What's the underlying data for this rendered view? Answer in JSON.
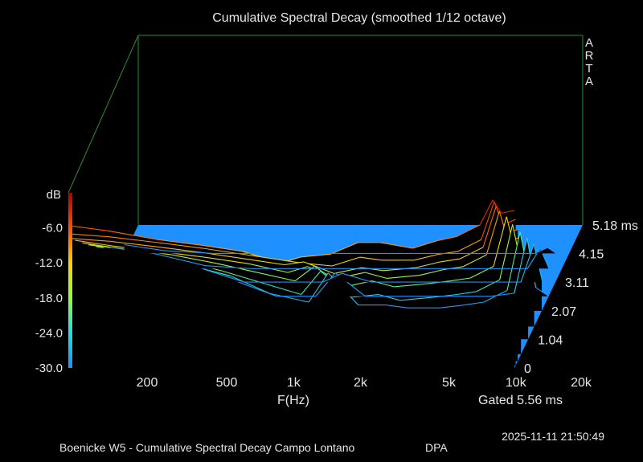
{
  "chart_data": {
    "type": "waterfall",
    "title": "Cumulative Spectral Decay (smoothed 1/12 octave)",
    "xlabel": "F(Hz)",
    "ylabel": "dB",
    "zlabel": "ms",
    "x_ticks": [
      "200",
      "500",
      "1k",
      "2k",
      "5k",
      "10k",
      "20k"
    ],
    "x_tick_values": [
      200,
      500,
      1000,
      2000,
      5000,
      10000,
      20000
    ],
    "y_ticks": [
      "-6.0",
      "-12.0",
      "-18.0",
      "-24.0",
      "-30.0"
    ],
    "y_tick_values": [
      -6,
      -12,
      -18,
      -24,
      -30
    ],
    "ylim": [
      -30,
      0
    ],
    "z_ticks": [
      "0",
      "1.04",
      "2.07",
      "3.11",
      "4.15",
      "5.18 ms"
    ],
    "z_tick_values": [
      0,
      1.04,
      2.07,
      3.11,
      4.15,
      5.18
    ],
    "gated_label": "Gated 5.56 ms",
    "brand_letters": [
      "A",
      "R",
      "T",
      "A"
    ],
    "colors": {
      "background": "#000000",
      "floor": "#1e90ff",
      "frame": "#2e8b2e",
      "text": "#e6e6e6"
    },
    "series": [
      {
        "time_ms": 0.0,
        "values": [
          [
            200,
            -5.6
          ],
          [
            300,
            -6.5
          ],
          [
            500,
            -8.0
          ],
          [
            800,
            -9.0
          ],
          [
            1200,
            -10.0
          ],
          [
            1800,
            -12.0
          ],
          [
            2200,
            -11.0
          ],
          [
            3000,
            -10.5
          ],
          [
            4000,
            -8.5
          ],
          [
            5000,
            -8.5
          ],
          [
            7000,
            -9.5
          ],
          [
            9000,
            -8.2
          ],
          [
            11000,
            -7.5
          ],
          [
            14000,
            -5.5
          ],
          [
            16000,
            -1.2
          ],
          [
            17500,
            -3.5
          ],
          [
            20000,
            -3.0
          ]
        ]
      },
      {
        "time_ms": 0.1,
        "values": [
          [
            200,
            -7.5
          ],
          [
            300,
            -8.0
          ],
          [
            500,
            -9.0
          ],
          [
            800,
            -10.0
          ],
          [
            1200,
            -11.0
          ],
          [
            1800,
            -12.0
          ],
          [
            2200,
            -12.5
          ],
          [
            3000,
            -13.0
          ],
          [
            4000,
            -11.5
          ],
          [
            5000,
            -12.0
          ],
          [
            7000,
            -12.0
          ],
          [
            9000,
            -11.0
          ],
          [
            11000,
            -10.5
          ],
          [
            14000,
            -8.5
          ],
          [
            16000,
            -2.0
          ],
          [
            17500,
            -6.0
          ],
          [
            20000,
            -5.0
          ]
        ]
      },
      {
        "time_ms": 0.25,
        "values": [
          [
            200,
            -9.0
          ],
          [
            300,
            -9.5
          ],
          [
            500,
            -10.5
          ],
          [
            800,
            -11.5
          ],
          [
            1200,
            -12.5
          ],
          [
            1800,
            -13.5
          ],
          [
            2200,
            -13.0
          ],
          [
            3000,
            -15.0
          ],
          [
            4000,
            -14.0
          ],
          [
            5000,
            -14.5
          ],
          [
            7000,
            -14.0
          ],
          [
            9000,
            -13.0
          ],
          [
            11000,
            -12.5
          ],
          [
            14000,
            -10.5
          ],
          [
            16000,
            -3.5
          ],
          [
            17500,
            -8.0
          ],
          [
            20000,
            -7.5
          ]
        ]
      },
      {
        "time_ms": 0.5,
        "values": [
          [
            200,
            -10.5
          ],
          [
            300,
            -11.5
          ],
          [
            500,
            -12.5
          ],
          [
            800,
            -13.5
          ],
          [
            1200,
            -14.5
          ],
          [
            1800,
            -16.0
          ],
          [
            2200,
            -15.0
          ],
          [
            3000,
            -17.0
          ],
          [
            4000,
            -16.0
          ],
          [
            5000,
            -17.0
          ],
          [
            7000,
            -16.5
          ],
          [
            9000,
            -15.5
          ],
          [
            11000,
            -15.0
          ],
          [
            14000,
            -13.0
          ],
          [
            16000,
            -5.5
          ],
          [
            17500,
            -10.5
          ],
          [
            20000,
            -10.0
          ]
        ]
      },
      {
        "time_ms": 1.04,
        "values": [
          [
            200,
            -13.5
          ],
          [
            300,
            -14.5
          ],
          [
            500,
            -15.5
          ],
          [
            800,
            -17.0
          ],
          [
            1200,
            -18.5
          ],
          [
            1800,
            -20.0
          ],
          [
            2200,
            -17.5
          ],
          [
            3000,
            -21.0
          ],
          [
            4000,
            -20.0
          ],
          [
            5000,
            -21.0
          ],
          [
            7000,
            -20.5
          ],
          [
            9000,
            -20.0
          ],
          [
            11000,
            -19.5
          ],
          [
            14000,
            -17.5
          ],
          [
            16000,
            -9.0
          ],
          [
            17500,
            -15.0
          ],
          [
            20000,
            -15.0
          ]
        ]
      },
      {
        "time_ms": 1.5,
        "values": [
          [
            200,
            -16.0
          ],
          [
            300,
            -17.0
          ],
          [
            500,
            -18.5
          ],
          [
            800,
            -20.5
          ],
          [
            1200,
            -22.5
          ],
          [
            1800,
            -24.5
          ],
          [
            2200,
            -20.5
          ],
          [
            3000,
            -25.0
          ],
          [
            4000,
            -24.5
          ],
          [
            5000,
            -25.5
          ],
          [
            7000,
            -25.0
          ],
          [
            9000,
            -24.5
          ],
          [
            11000,
            -24.0
          ],
          [
            14000,
            -22.0
          ],
          [
            16000,
            -12.5
          ],
          [
            17500,
            -19.5
          ],
          [
            20000,
            -20.0
          ]
        ]
      },
      {
        "time_ms": 2.07,
        "values": [
          [
            200,
            -19.0
          ],
          [
            300,
            -20.0
          ],
          [
            500,
            -22.0
          ],
          [
            800,
            -24.0
          ],
          [
            1200,
            -27.0
          ],
          [
            1800,
            -28.5
          ],
          [
            2200,
            -23.5
          ],
          [
            3000,
            -29.0
          ],
          [
            4000,
            -29.0
          ],
          [
            5000,
            -29.5
          ],
          [
            7000,
            -29.5
          ],
          [
            9000,
            -29.0
          ],
          [
            11000,
            -28.5
          ],
          [
            14000,
            -26.5
          ],
          [
            16000,
            -16.5
          ],
          [
            17500,
            -24.0
          ],
          [
            20000,
            -25.0
          ]
        ]
      },
      {
        "time_ms": 2.6,
        "values": [
          [
            200,
            -21.5
          ],
          [
            300,
            -22.5
          ],
          [
            500,
            -24.5
          ],
          [
            800,
            -27.5
          ],
          [
            1200,
            -30.0
          ],
          [
            1800,
            -30.0
          ],
          [
            2200,
            -26.0
          ],
          [
            3000,
            -30.0
          ],
          [
            4000,
            -30.0
          ],
          [
            5000,
            -30.0
          ],
          [
            7000,
            -30.0
          ],
          [
            9000,
            -30.0
          ],
          [
            11000,
            -30.0
          ],
          [
            14000,
            -29.5
          ],
          [
            16000,
            -20.0
          ],
          [
            17500,
            -28.5
          ],
          [
            20000,
            -30.0
          ]
        ]
      },
      {
        "time_ms": 3.11,
        "values": [
          [
            200,
            -24.0
          ],
          [
            300,
            -25.0
          ],
          [
            500,
            -27.5
          ],
          [
            800,
            -30.0
          ],
          [
            1200,
            -30.0
          ],
          [
            1800,
            -30.0
          ],
          [
            2200,
            -28.5
          ],
          [
            3000,
            -30.0
          ],
          [
            4000,
            -30.0
          ],
          [
            5000,
            -30.0
          ],
          [
            7000,
            -30.0
          ],
          [
            9000,
            -30.0
          ],
          [
            11000,
            -30.0
          ],
          [
            14000,
            -30.0
          ],
          [
            16000,
            -23.5
          ],
          [
            17500,
            -30.0
          ],
          [
            20000,
            -30.0
          ]
        ]
      },
      {
        "time_ms": 3.6,
        "values": [
          [
            200,
            -26.5
          ],
          [
            300,
            -27.5
          ],
          [
            500,
            -29.5
          ],
          [
            800,
            -30.0
          ],
          [
            1200,
            -30.0
          ],
          [
            1800,
            -30.0
          ],
          [
            2200,
            -30.0
          ],
          [
            3000,
            -30.0
          ],
          [
            4000,
            -30.0
          ],
          [
            5000,
            -30.0
          ],
          [
            7000,
            -30.0
          ],
          [
            9000,
            -30.0
          ],
          [
            11000,
            -30.0
          ],
          [
            14000,
            -30.0
          ],
          [
            16000,
            -26.5
          ],
          [
            17500,
            -30.0
          ],
          [
            20000,
            -30.0
          ]
        ]
      },
      {
        "time_ms": 4.15,
        "values": [
          [
            200,
            -28.5
          ],
          [
            300,
            -29.5
          ],
          [
            500,
            -30.0
          ],
          [
            800,
            -30.0
          ],
          [
            1200,
            -30.0
          ],
          [
            1800,
            -30.0
          ],
          [
            2200,
            -30.0
          ],
          [
            3000,
            -30.0
          ],
          [
            4000,
            -30.0
          ],
          [
            5000,
            -30.0
          ],
          [
            7000,
            -30.0
          ],
          [
            9000,
            -30.0
          ],
          [
            11000,
            -30.0
          ],
          [
            14000,
            -30.0
          ],
          [
            16000,
            -29.0
          ],
          [
            17500,
            -30.0
          ],
          [
            20000,
            -30.0
          ]
        ]
      }
    ]
  },
  "footer": {
    "description": "Boenicke W5 - Cumulative Spectral Decay Campo Lontano",
    "mic": "DPA",
    "datetime": "2025-11-11  21:50:49"
  }
}
